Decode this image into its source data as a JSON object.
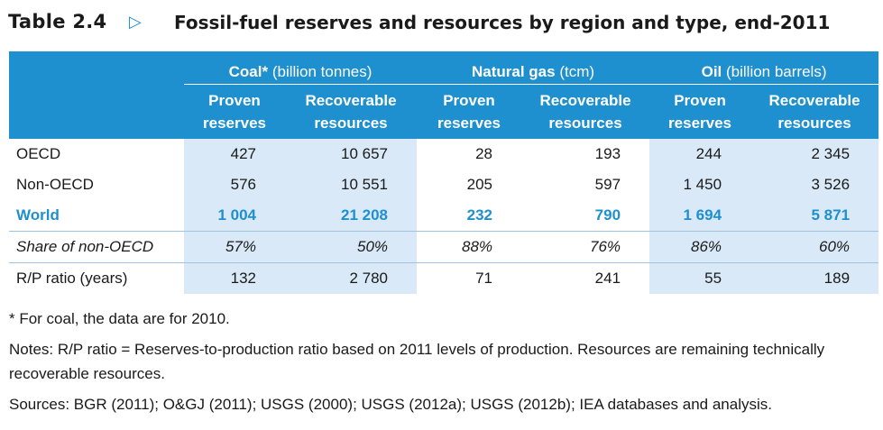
{
  "title": {
    "number": "Table 2.4",
    "arrow": "▷",
    "text": "Fossil-fuel reserves and resources by region and type, end-2011"
  },
  "groups": [
    {
      "name": "Coal*",
      "unit": "(billion tonnes)"
    },
    {
      "name": "Natural gas",
      "unit": "(tcm)"
    },
    {
      "name": "Oil",
      "unit": "(billion barrels)"
    }
  ],
  "subheaders": [
    {
      "line1": "Proven",
      "line2": "reserves"
    },
    {
      "line1": "Recoverable",
      "line2": "resources"
    }
  ],
  "rows": [
    {
      "label": "OECD",
      "values": [
        "427",
        "10 657",
        "28",
        "193",
        "244",
        "2 345"
      ]
    },
    {
      "label": "Non-OECD",
      "values": [
        "576",
        "10 551",
        "205",
        "597",
        "1 450",
        "3 526"
      ]
    },
    {
      "label": "World",
      "values": [
        "1 004",
        "21 208",
        "232",
        "790",
        "1 694",
        "5 871"
      ]
    },
    {
      "label": "Share of non-OECD",
      "values": [
        "57%",
        "50%",
        "88%",
        "76%",
        "86%",
        "60%"
      ]
    },
    {
      "label": "R/P ratio (years)",
      "values": [
        "132",
        "2 780",
        "71",
        "241",
        "55",
        "189"
      ]
    }
  ],
  "notes": {
    "footnote": "* For coal, the data are for 2010.",
    "notes": "Notes: R/P ratio = Reserves-to-production ratio based on 2011 levels of production. Resources are remaining technically recoverable resources.",
    "sources": "Sources: BGR (2011); O&GJ (2011); USGS (2000); USGS (2012a); USGS (2012b); IEA databases and analysis."
  },
  "colors": {
    "accent": "#1e8fcf",
    "shade": "#d9e9f7"
  }
}
